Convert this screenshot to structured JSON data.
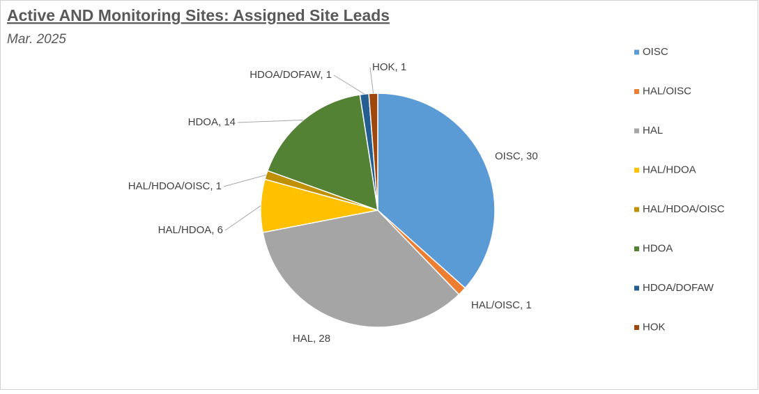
{
  "chart_data": {
    "type": "pie",
    "title": "Active AND Monitoring Sites: Assigned Site Leads",
    "subtitle": "Mar. 2025",
    "categories": [
      "OISC",
      "HAL/OISC",
      "HAL",
      "HAL/HDOA",
      "HAL/HDOA/OISC",
      "HDOA",
      "HDOA/DOFAW",
      "HOK"
    ],
    "values": [
      30,
      1,
      28,
      6,
      1,
      14,
      1,
      1
    ],
    "value_labels": [
      "OISC, 30",
      "HAL/OISC, 1",
      "HAL, 28",
      "HAL/HDOA, 6",
      "HAL/HDOA/OISC, 1",
      "HDOA, 14",
      "HDOA/DOFAW, 1",
      "HOK, 1"
    ],
    "colors": [
      "#5b9bd5",
      "#ed7d31",
      "#a5a5a5",
      "#ffc000",
      "#bf9000",
      "#548235",
      "#255e91",
      "#9e480e"
    ],
    "legend": "right"
  }
}
